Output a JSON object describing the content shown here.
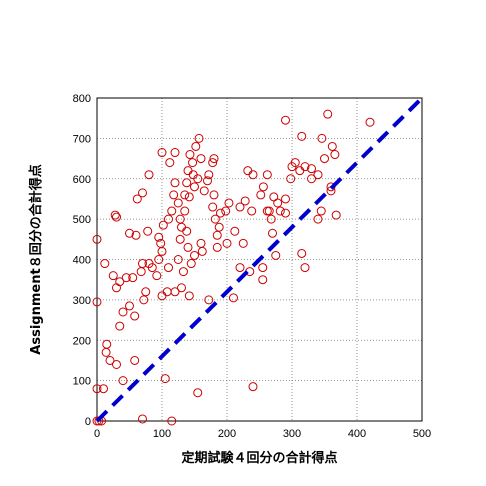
{
  "chart_data": {
    "type": "scatter",
    "xlabel": "定期試験４回分の合計得点",
    "ylabel": "Assignment８回分の合計得点",
    "xlim": [
      0,
      500
    ],
    "ylim": [
      0,
      800
    ],
    "xticks": [
      0,
      100,
      200,
      300,
      400,
      500
    ],
    "yticks": [
      0,
      100,
      200,
      300,
      400,
      500,
      600,
      700,
      800
    ],
    "grid": "dotted",
    "marker": "open-circle",
    "marker_color": "#cc0000",
    "reference_line": {
      "style": "dashed",
      "color": "#0000cc",
      "from": [
        0,
        0
      ],
      "to": [
        500,
        800
      ]
    },
    "points": [
      [
        0,
        0
      ],
      [
        3,
        0
      ],
      [
        7,
        0
      ],
      [
        115,
        0
      ],
      [
        70,
        5
      ],
      [
        0,
        80
      ],
      [
        10,
        80
      ],
      [
        40,
        100
      ],
      [
        105,
        105
      ],
      [
        58,
        150
      ],
      [
        20,
        150
      ],
      [
        30,
        140
      ],
      [
        14,
        170
      ],
      [
        15,
        190
      ],
      [
        35,
        235
      ],
      [
        40,
        270
      ],
      [
        58,
        260
      ],
      [
        50,
        285
      ],
      [
        72,
        300
      ],
      [
        75,
        320
      ],
      [
        100,
        310
      ],
      [
        108,
        320
      ],
      [
        120,
        320
      ],
      [
        130,
        330
      ],
      [
        142,
        310
      ],
      [
        172,
        300
      ],
      [
        210,
        305
      ],
      [
        0,
        295
      ],
      [
        0,
        450
      ],
      [
        12,
        390
      ],
      [
        25,
        360
      ],
      [
        30,
        330
      ],
      [
        35,
        345
      ],
      [
        45,
        355
      ],
      [
        55,
        355
      ],
      [
        68,
        370
      ],
      [
        70,
        390
      ],
      [
        85,
        380
      ],
      [
        80,
        390
      ],
      [
        92,
        360
      ],
      [
        95,
        400
      ],
      [
        100,
        420
      ],
      [
        110,
        380
      ],
      [
        125,
        400
      ],
      [
        128,
        450
      ],
      [
        133,
        370
      ],
      [
        140,
        430
      ],
      [
        145,
        390
      ],
      [
        150,
        410
      ],
      [
        162,
        420
      ],
      [
        185,
        430
      ],
      [
        200,
        440
      ],
      [
        185,
        460
      ],
      [
        225,
        440
      ],
      [
        220,
        380
      ],
      [
        235,
        370
      ],
      [
        255,
        380
      ],
      [
        275,
        410
      ],
      [
        315,
        415
      ],
      [
        320,
        380
      ],
      [
        255,
        350
      ],
      [
        238,
        520
      ],
      [
        262,
        520
      ],
      [
        28,
        510
      ],
      [
        30,
        505
      ],
      [
        50,
        465
      ],
      [
        60,
        460
      ],
      [
        62,
        550
      ],
      [
        70,
        565
      ],
      [
        78,
        470
      ],
      [
        80,
        610
      ],
      [
        98,
        440
      ],
      [
        95,
        455
      ],
      [
        102,
        485
      ],
      [
        110,
        500
      ],
      [
        115,
        520
      ],
      [
        118,
        560
      ],
      [
        120,
        590
      ],
      [
        125,
        540
      ],
      [
        128,
        500
      ],
      [
        130,
        480
      ],
      [
        135,
        520
      ],
      [
        138,
        470
      ],
      [
        142,
        555
      ],
      [
        148,
        610
      ],
      [
        150,
        580
      ],
      [
        155,
        600
      ],
      [
        160,
        650
      ],
      [
        165,
        570
      ],
      [
        170,
        595
      ],
      [
        178,
        640
      ],
      [
        180,
        560
      ],
      [
        182,
        500
      ],
      [
        188,
        480
      ],
      [
        198,
        520
      ],
      [
        203,
        540
      ],
      [
        178,
        530
      ],
      [
        190,
        515
      ],
      [
        135,
        560
      ],
      [
        140,
        620
      ],
      [
        143,
        660
      ],
      [
        147,
        640
      ],
      [
        152,
        680
      ],
      [
        157,
        700
      ],
      [
        172,
        610
      ],
      [
        180,
        650
      ],
      [
        120,
        665
      ],
      [
        100,
        665
      ],
      [
        112,
        640
      ],
      [
        220,
        530
      ],
      [
        228,
        545
      ],
      [
        232,
        620
      ],
      [
        240,
        610
      ],
      [
        252,
        560
      ],
      [
        256,
        580
      ],
      [
        262,
        610
      ],
      [
        265,
        520
      ],
      [
        268,
        500
      ],
      [
        272,
        555
      ],
      [
        278,
        540
      ],
      [
        282,
        520
      ],
      [
        290,
        515
      ],
      [
        290,
        550
      ],
      [
        298,
        600
      ],
      [
        300,
        630
      ],
      [
        305,
        640
      ],
      [
        312,
        620
      ],
      [
        315,
        705
      ],
      [
        320,
        630
      ],
      [
        330,
        625
      ],
      [
        330,
        600
      ],
      [
        340,
        610
      ],
      [
        346,
        700
      ],
      [
        350,
        650
      ],
      [
        355,
        760
      ],
      [
        360,
        570
      ],
      [
        362,
        680
      ],
      [
        366,
        660
      ],
      [
        368,
        510
      ],
      [
        345,
        520
      ],
      [
        360,
        580
      ],
      [
        290,
        745
      ],
      [
        420,
        740
      ],
      [
        340,
        500
      ],
      [
        270,
        465
      ],
      [
        212,
        470
      ],
      [
        240,
        85
      ],
      [
        155,
        70
      ],
      [
        138,
        590
      ],
      [
        160,
        440
      ]
    ]
  }
}
